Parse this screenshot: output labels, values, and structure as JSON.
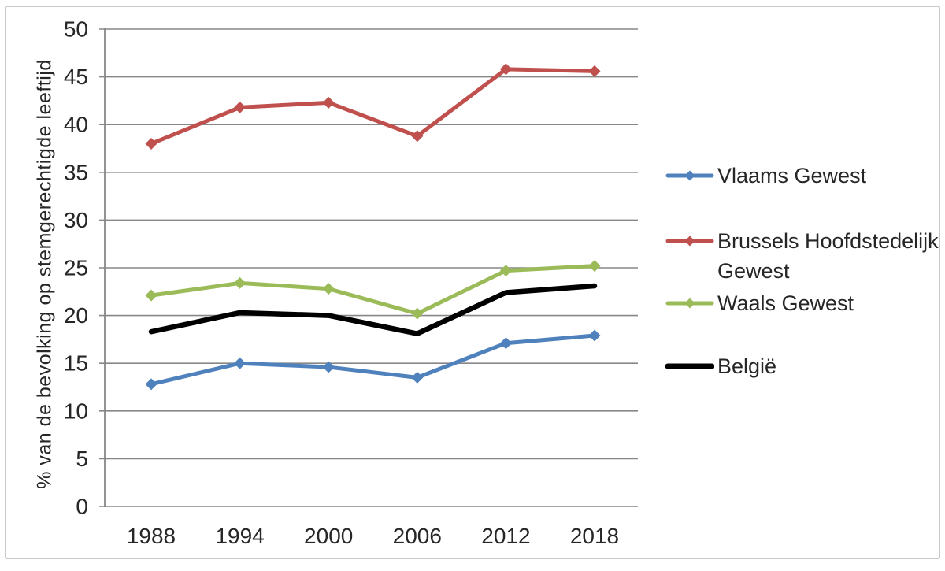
{
  "figure": {
    "background": "#ffffff",
    "border_color": "#c9c9c9"
  },
  "chart_data": {
    "type": "line",
    "title": "",
    "xlabel": "",
    "ylabel": "% van de bevolking op stemgerechtigde leeftijd",
    "categories": [
      "1988",
      "1994",
      "2000",
      "2006",
      "2012",
      "2018"
    ],
    "ylim": [
      0,
      50
    ],
    "ytick_step": 5,
    "ytick_labels": [
      "0",
      "5",
      "10",
      "15",
      "20",
      "25",
      "30",
      "35",
      "40",
      "45",
      "50"
    ],
    "grid": "horizontal-only",
    "legend_position": "right",
    "axis_color": "#878787",
    "text_color": "#262626",
    "series": [
      {
        "name": "Vlaams Gewest",
        "color": "#4f81bd",
        "marker": "diamond",
        "values": [
          12.8,
          15.0,
          14.6,
          13.5,
          17.1,
          17.9
        ]
      },
      {
        "name": "Brussels Hoofdstedelijk Gewest",
        "color": "#c0504d",
        "marker": "diamond",
        "values": [
          38.0,
          41.8,
          42.3,
          38.8,
          45.8,
          45.6
        ]
      },
      {
        "name": "Waals Gewest",
        "color": "#9bbb59",
        "marker": "diamond",
        "values": [
          22.1,
          23.4,
          22.8,
          20.2,
          24.7,
          25.2
        ]
      },
      {
        "name": "België",
        "color": "#000000",
        "marker": "none",
        "values": [
          18.3,
          20.3,
          20.0,
          18.1,
          22.4,
          23.1
        ]
      }
    ]
  }
}
